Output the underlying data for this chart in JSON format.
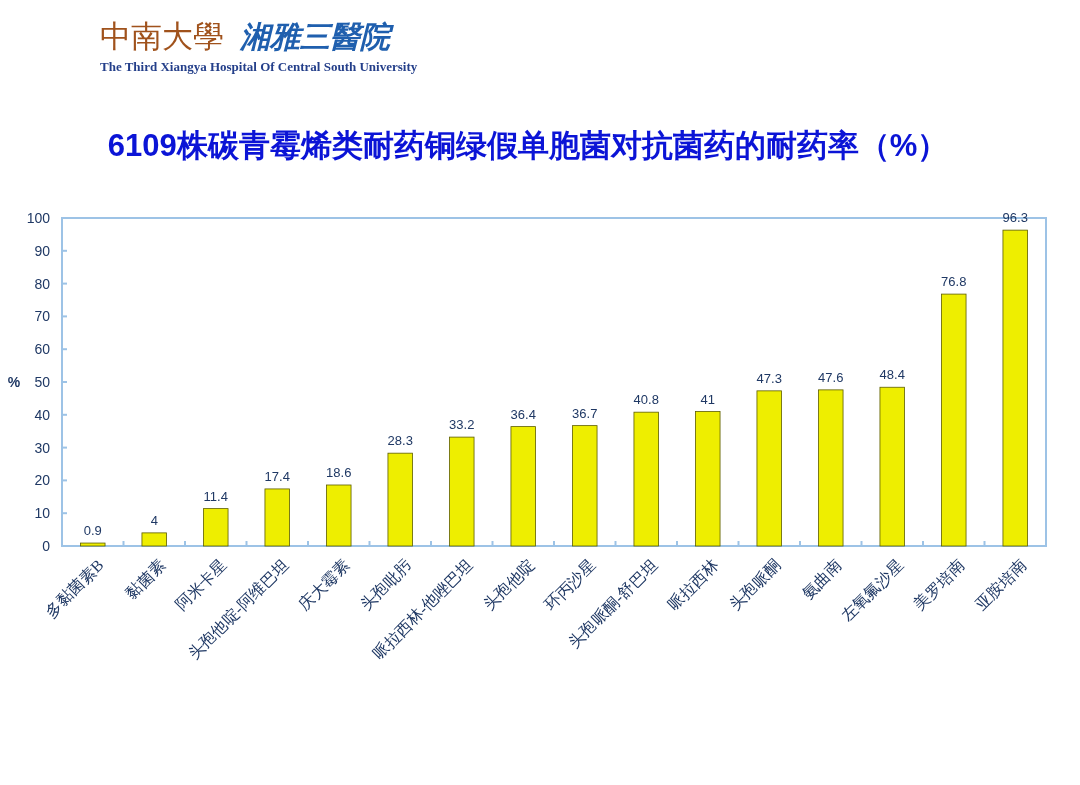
{
  "chart_data": {
    "type": "bar",
    "title": "6109株碳青霉烯类耐药铜绿假单胞菌对抗菌药的耐药率（%）",
    "ylabel": "%",
    "annotations": [
      "中南大學",
      "湘雅三醫院",
      "The Third Xiangya Hospital Of Central South University"
    ],
    "categories": [
      "多黏菌素B",
      "黏菌素",
      "阿米卡星",
      "头孢他啶-阿维巴坦",
      "庆大霉素",
      "头孢吡肟",
      "哌拉西林-他唑巴坦",
      "头孢他啶",
      "环丙沙星",
      "头孢哌酮-舒巴坦",
      "哌拉西林",
      "头孢哌酮",
      "氨曲南",
      "左氧氟沙星",
      "美罗培南",
      "亚胺培南"
    ],
    "values": [
      0.9,
      4,
      11.4,
      17.4,
      18.6,
      28.3,
      33.2,
      36.4,
      36.7,
      40.8,
      41,
      47.3,
      47.6,
      48.4,
      76.8,
      96.3
    ],
    "color": "#eeee00",
    "ylim": [
      0,
      100
    ],
    "yticks": [
      0,
      10,
      20,
      30,
      40,
      50,
      60,
      70,
      80,
      90,
      100
    ],
    "data_labels": true
  }
}
